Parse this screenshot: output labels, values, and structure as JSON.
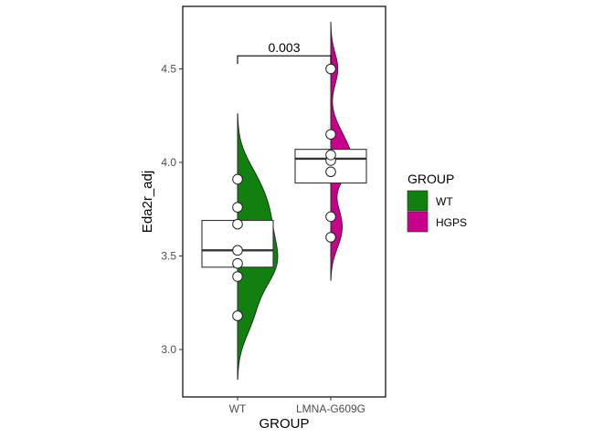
{
  "chart_data": {
    "type": "raincloud",
    "xlabel": "GROUP",
    "ylabel": "Eda2r_adj",
    "ylim": [
      2.82,
      4.82
    ],
    "yticks": [
      "3.0",
      "3.5",
      "4.0",
      "4.5"
    ],
    "ytick_values": [
      3.0,
      3.5,
      4.0,
      4.5
    ],
    "categories": [
      "WT",
      "LMNA-G609G"
    ],
    "series": [
      {
        "name": "WT",
        "color": "#118011",
        "points": [
          3.18,
          3.39,
          3.46,
          3.53,
          3.67,
          3.76,
          3.91
        ],
        "box": {
          "q1": 3.44,
          "median": 3.53,
          "q3": 3.69
        },
        "density_range": [
          2.84,
          4.26
        ]
      },
      {
        "name": "HGPS",
        "color": "#c9008b",
        "points": [
          3.6,
          3.71,
          3.95,
          4.01,
          4.04,
          4.15,
          4.5
        ],
        "box": {
          "q1": 3.89,
          "median": 4.02,
          "q3": 4.07
        },
        "density_range": [
          3.37,
          4.75
        ]
      }
    ],
    "annotation": {
      "text": "0.003",
      "y": 4.57
    },
    "legend": {
      "title": "GROUP",
      "position": "right",
      "entries": [
        "WT",
        "HGPS"
      ]
    },
    "grid": false
  }
}
